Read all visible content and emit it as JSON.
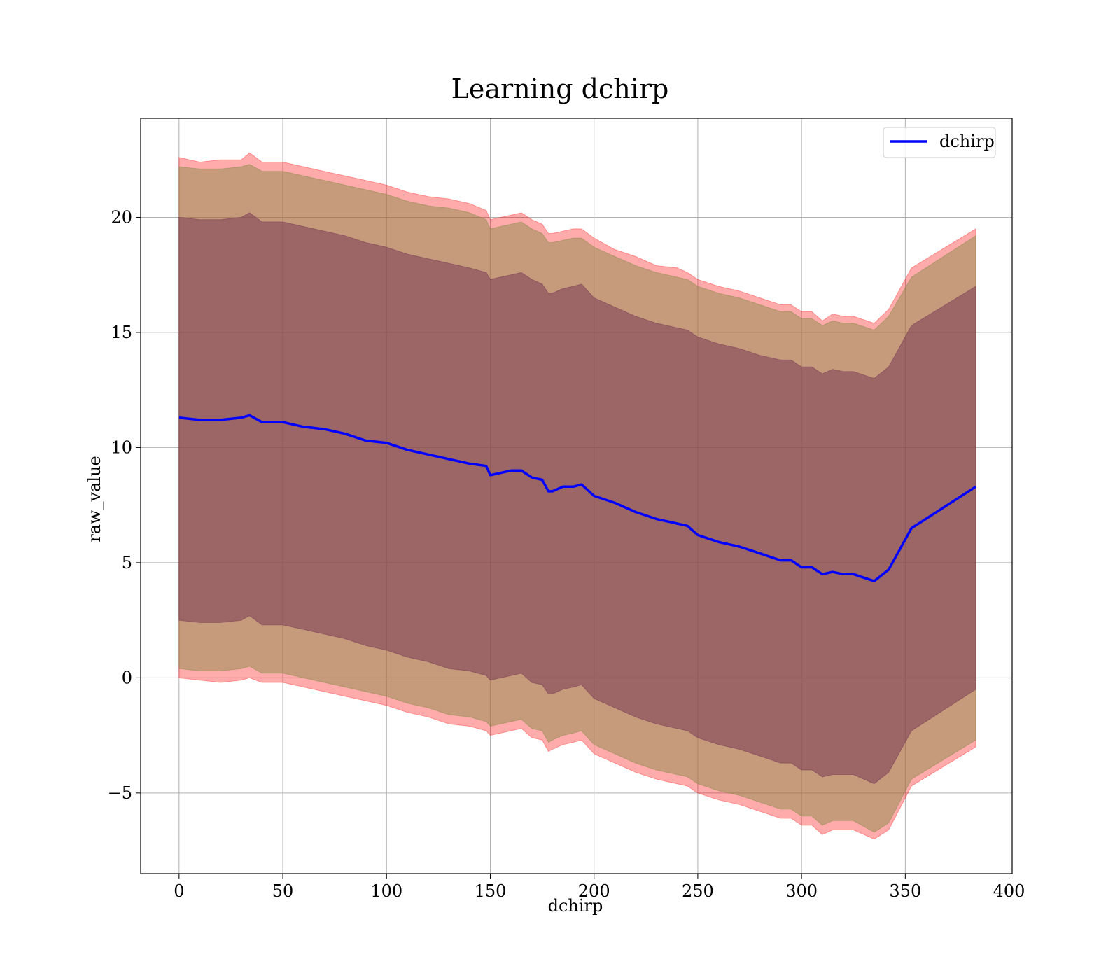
{
  "chart_data": {
    "type": "area",
    "title": "Learning dchirp",
    "xlabel": "dchirp",
    "ylabel": "raw_value",
    "xlim": [
      -18.5,
      401.5
    ],
    "ylim": [
      -8.5,
      24.3
    ],
    "xticks": [
      0,
      50,
      100,
      150,
      200,
      250,
      300,
      350,
      400
    ],
    "yticks": [
      -5,
      0,
      5,
      10,
      15,
      20
    ],
    "xtick_labels": [
      "0",
      "50",
      "100",
      "150",
      "200",
      "250",
      "300",
      "350",
      "400"
    ],
    "ytick_labels": [
      "−5",
      "0",
      "5",
      "10",
      "15",
      "20"
    ],
    "grid": true,
    "legend": {
      "position": "upper right",
      "entries": [
        "dchirp"
      ]
    },
    "series": [
      {
        "name": "dchirp",
        "kind": "line",
        "color": "#0000ff",
        "x": [
          0,
          10,
          20,
          30,
          34,
          40,
          50,
          60,
          70,
          80,
          90,
          100,
          110,
          120,
          130,
          140,
          148,
          150,
          160,
          165,
          170,
          175,
          178,
          180,
          185,
          190,
          194,
          200,
          210,
          220,
          230,
          240,
          245,
          250,
          260,
          270,
          280,
          290,
          295,
          300,
          305,
          310,
          315,
          320,
          325,
          335,
          342,
          353,
          384
        ],
        "y": [
          11.3,
          11.2,
          11.2,
          11.3,
          11.4,
          11.1,
          11.1,
          10.9,
          10.8,
          10.6,
          10.3,
          10.2,
          9.9,
          9.7,
          9.5,
          9.3,
          9.2,
          8.8,
          9.0,
          9.0,
          8.7,
          8.6,
          8.1,
          8.1,
          8.3,
          8.3,
          8.4,
          7.9,
          7.6,
          7.2,
          6.9,
          6.7,
          6.6,
          6.2,
          5.9,
          5.7,
          5.4,
          5.1,
          5.1,
          4.8,
          4.8,
          4.5,
          4.6,
          4.5,
          4.5,
          4.2,
          4.7,
          6.5,
          8.3
        ]
      }
    ],
    "bands": [
      {
        "name": "outer band",
        "color": "#ff0000",
        "opacity": 0.33,
        "x": [
          0,
          10,
          20,
          30,
          34,
          40,
          50,
          60,
          70,
          80,
          90,
          100,
          110,
          120,
          130,
          140,
          148,
          150,
          160,
          165,
          170,
          175,
          178,
          180,
          185,
          190,
          194,
          200,
          210,
          220,
          230,
          240,
          245,
          250,
          260,
          270,
          280,
          290,
          295,
          300,
          305,
          310,
          315,
          320,
          325,
          335,
          342,
          353,
          384
        ],
        "upper": [
          22.6,
          22.4,
          22.5,
          22.5,
          22.8,
          22.4,
          22.4,
          22.2,
          22.0,
          21.8,
          21.6,
          21.4,
          21.1,
          20.9,
          20.8,
          20.6,
          20.3,
          19.9,
          20.1,
          20.2,
          19.9,
          19.7,
          19.3,
          19.3,
          19.4,
          19.5,
          19.5,
          19.1,
          18.6,
          18.3,
          17.9,
          17.8,
          17.6,
          17.3,
          17.0,
          16.8,
          16.5,
          16.2,
          16.2,
          15.9,
          15.9,
          15.5,
          15.8,
          15.7,
          15.7,
          15.4,
          16.0,
          17.8,
          19.5
        ],
        "lower": [
          0.0,
          -0.1,
          -0.2,
          -0.1,
          0.0,
          -0.2,
          -0.2,
          -0.4,
          -0.6,
          -0.8,
          -1.0,
          -1.2,
          -1.5,
          -1.7,
          -2.0,
          -2.1,
          -2.3,
          -2.5,
          -2.3,
          -2.2,
          -2.6,
          -2.7,
          -3.2,
          -3.1,
          -2.9,
          -2.8,
          -2.7,
          -3.3,
          -3.7,
          -4.1,
          -4.4,
          -4.6,
          -4.7,
          -5.0,
          -5.3,
          -5.5,
          -5.8,
          -6.1,
          -6.1,
          -6.4,
          -6.4,
          -6.8,
          -6.6,
          -6.6,
          -6.6,
          -7.0,
          -6.6,
          -4.7,
          -3.0
        ]
      },
      {
        "name": "middle band",
        "color": "#8b8b4b",
        "opacity": 0.5,
        "x": [
          0,
          10,
          20,
          30,
          34,
          40,
          50,
          60,
          70,
          80,
          90,
          100,
          110,
          120,
          130,
          140,
          148,
          150,
          160,
          165,
          170,
          175,
          178,
          180,
          185,
          190,
          194,
          200,
          210,
          220,
          230,
          240,
          245,
          250,
          260,
          270,
          280,
          290,
          295,
          300,
          305,
          310,
          315,
          320,
          325,
          335,
          342,
          353,
          384
        ],
        "upper": [
          22.2,
          22.1,
          22.1,
          22.2,
          22.3,
          22.0,
          22.0,
          21.8,
          21.6,
          21.4,
          21.2,
          21.0,
          20.7,
          20.5,
          20.4,
          20.2,
          19.9,
          19.5,
          19.7,
          19.8,
          19.5,
          19.3,
          18.9,
          18.9,
          19.0,
          19.1,
          19.1,
          18.7,
          18.3,
          17.9,
          17.6,
          17.4,
          17.3,
          17.0,
          16.7,
          16.5,
          16.2,
          15.9,
          15.9,
          15.6,
          15.6,
          15.3,
          15.5,
          15.4,
          15.4,
          15.1,
          15.7,
          17.4,
          19.2
        ],
        "lower": [
          0.4,
          0.3,
          0.3,
          0.4,
          0.5,
          0.2,
          0.2,
          0.0,
          -0.2,
          -0.4,
          -0.6,
          -0.8,
          -1.1,
          -1.3,
          -1.6,
          -1.7,
          -1.9,
          -2.1,
          -1.9,
          -1.8,
          -2.2,
          -2.3,
          -2.8,
          -2.7,
          -2.5,
          -2.4,
          -2.3,
          -2.9,
          -3.3,
          -3.7,
          -4.0,
          -4.2,
          -4.3,
          -4.6,
          -4.9,
          -5.1,
          -5.4,
          -5.7,
          -5.7,
          -6.0,
          -6.0,
          -6.4,
          -6.2,
          -6.2,
          -6.2,
          -6.7,
          -6.3,
          -4.4,
          -2.7
        ]
      },
      {
        "name": "inner band",
        "color": "#7a3b55",
        "opacity": 0.55,
        "x": [
          0,
          10,
          20,
          30,
          34,
          40,
          50,
          60,
          70,
          80,
          90,
          100,
          110,
          120,
          130,
          140,
          148,
          150,
          160,
          165,
          170,
          175,
          178,
          180,
          185,
          190,
          194,
          200,
          210,
          220,
          230,
          240,
          245,
          250,
          260,
          270,
          280,
          290,
          295,
          300,
          305,
          310,
          315,
          320,
          325,
          335,
          342,
          353,
          384
        ],
        "upper": [
          20.0,
          19.9,
          19.9,
          20.0,
          20.2,
          19.8,
          19.8,
          19.6,
          19.4,
          19.2,
          18.9,
          18.7,
          18.4,
          18.2,
          18.0,
          17.8,
          17.6,
          17.3,
          17.5,
          17.6,
          17.3,
          17.1,
          16.7,
          16.7,
          16.9,
          17.0,
          17.1,
          16.5,
          16.1,
          15.7,
          15.4,
          15.2,
          15.1,
          14.8,
          14.5,
          14.3,
          14.0,
          13.8,
          13.8,
          13.5,
          13.5,
          13.2,
          13.4,
          13.3,
          13.3,
          13.0,
          13.5,
          15.3,
          17.0
        ],
        "lower": [
          2.5,
          2.4,
          2.4,
          2.5,
          2.7,
          2.3,
          2.3,
          2.1,
          1.9,
          1.7,
          1.4,
          1.2,
          0.9,
          0.7,
          0.4,
          0.3,
          0.1,
          -0.1,
          0.1,
          0.2,
          -0.2,
          -0.3,
          -0.7,
          -0.7,
          -0.5,
          -0.4,
          -0.3,
          -0.9,
          -1.3,
          -1.7,
          -2.0,
          -2.2,
          -2.3,
          -2.6,
          -2.9,
          -3.1,
          -3.4,
          -3.7,
          -3.7,
          -4.0,
          -4.0,
          -4.3,
          -4.2,
          -4.2,
          -4.2,
          -4.6,
          -4.1,
          -2.3,
          -0.5
        ]
      }
    ]
  }
}
